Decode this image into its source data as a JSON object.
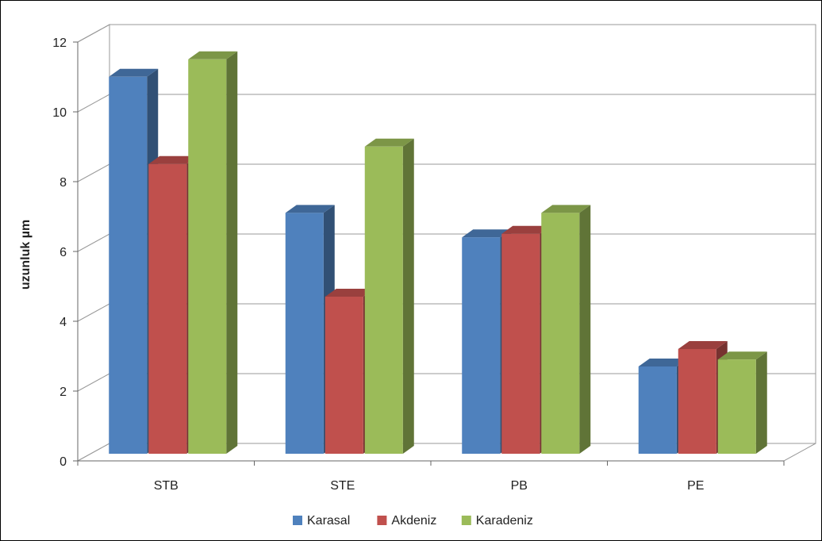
{
  "chart_data": {
    "type": "bar",
    "title": "",
    "xlabel": "",
    "ylabel": "uzunluk µm",
    "categories": [
      "STB",
      "STE",
      "PB",
      "PE"
    ],
    "series": [
      {
        "name": "Karasal",
        "values": [
          10.8,
          6.9,
          6.2,
          2.5
        ],
        "color": "#4f81bd"
      },
      {
        "name": "Akdeniz",
        "values": [
          8.3,
          4.5,
          6.3,
          3.0
        ],
        "color": "#c0504d"
      },
      {
        "name": "Karadeniz",
        "values": [
          11.3,
          8.8,
          6.9,
          2.7
        ],
        "color": "#9bbb59"
      }
    ],
    "ylim": [
      0,
      12
    ],
    "yticks": [
      0,
      2,
      4,
      6,
      8,
      10,
      12
    ],
    "grid": true,
    "legend": "bottom",
    "style": "3d-clustered-column"
  }
}
